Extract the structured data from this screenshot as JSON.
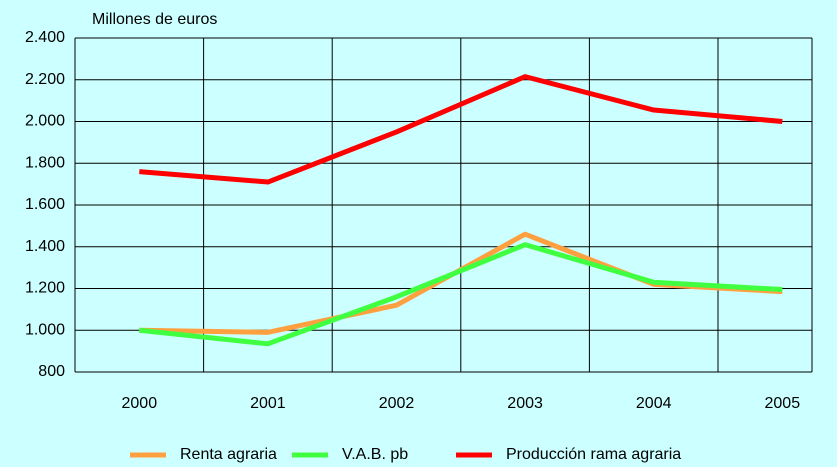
{
  "chart_data": {
    "type": "line",
    "y_label": "Millones de euros",
    "categories": [
      "2000",
      "2001",
      "2002",
      "2003",
      "2004",
      "2005"
    ],
    "series": [
      {
        "name": "Renta agraria",
        "color": "#ffa040",
        "values": [
          1000,
          990,
          1120,
          1460,
          1220,
          1185
        ]
      },
      {
        "name": "V.A.B. pb",
        "color": "#40ff40",
        "values": [
          1000,
          935,
          1160,
          1410,
          1230,
          1195
        ]
      },
      {
        "name": "Producción rama agraria",
        "color": "#ff0000",
        "values": [
          1760,
          1710,
          1950,
          2215,
          2055,
          2000
        ]
      }
    ],
    "ylim": [
      800,
      2400
    ],
    "yticks": [
      800,
      {
        "value": 1000,
        "label": "1.000"
      },
      {
        "value": 1200,
        "label": "1.200"
      },
      {
        "value": 1400,
        "label": "1.400"
      },
      {
        "value": 1600,
        "label": "1.600"
      },
      {
        "value": 1800,
        "label": "1.800"
      },
      {
        "value": 2000,
        "label": "2.000"
      },
      {
        "value": 2200,
        "label": "2.200"
      },
      {
        "value": 2400,
        "label": "2.400"
      }
    ],
    "grid": true,
    "legend": "bottom"
  }
}
